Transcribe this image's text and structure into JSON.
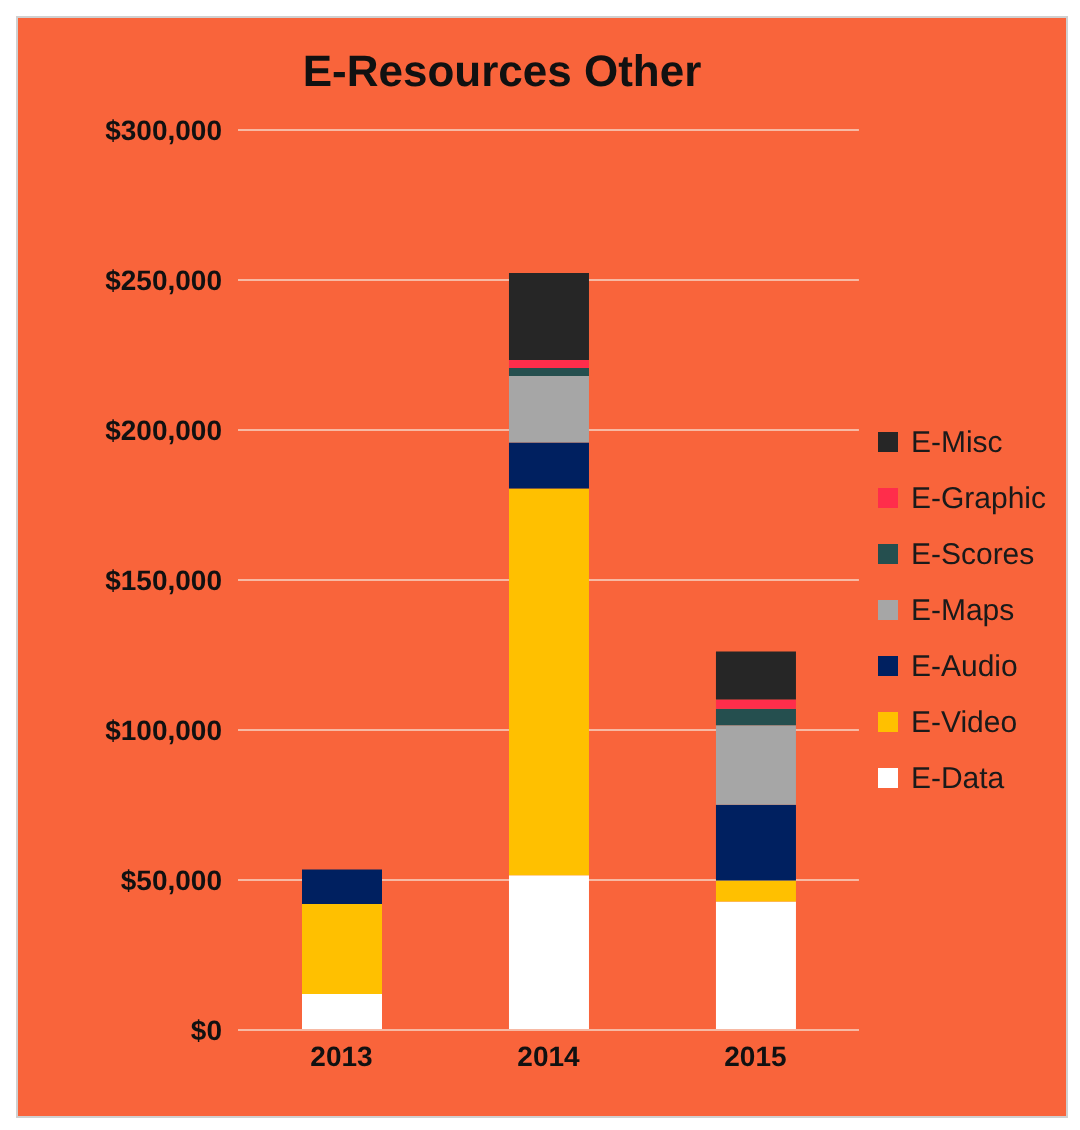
{
  "chart_data": {
    "type": "bar",
    "title": "E-Resources Other",
    "categories": [
      "2013",
      "2014",
      "2015"
    ],
    "stacked": true,
    "series": [
      {
        "name": "E-Data",
        "color": "#ffffff",
        "values": [
          12000,
          51600,
          42800
        ]
      },
      {
        "name": "E-Video",
        "color": "#ffc000",
        "values": [
          30000,
          128900,
          7000
        ]
      },
      {
        "name": "E-Audio",
        "color": "#002060",
        "values": [
          11500,
          15300,
          25300
        ]
      },
      {
        "name": "E-Maps",
        "color": "#a6a6a6",
        "values": [
          null,
          22200,
          26500
        ]
      },
      {
        "name": "E-Scores",
        "color": "#254f4f",
        "values": [
          null,
          2700,
          5500
        ]
      },
      {
        "name": "E-Graphic",
        "color": "#ff2d4b",
        "values": [
          null,
          2600,
          3100
        ]
      },
      {
        "name": "E-Misc",
        "color": "#262626",
        "values": [
          null,
          29000,
          16000
        ]
      }
    ],
    "ylim": [
      0,
      300000
    ],
    "yticks": [
      {
        "value": 0,
        "label": "$0"
      },
      {
        "value": 50000,
        "label": "$50,000"
      },
      {
        "value": 100000,
        "label": "$100,000"
      },
      {
        "value": 150000,
        "label": "$150,000"
      },
      {
        "value": 200000,
        "label": "$200,000"
      },
      {
        "value": 250000,
        "label": "$250,000"
      },
      {
        "value": 300000,
        "label": "$300,000"
      }
    ],
    "grid": "y",
    "legend": "right"
  }
}
